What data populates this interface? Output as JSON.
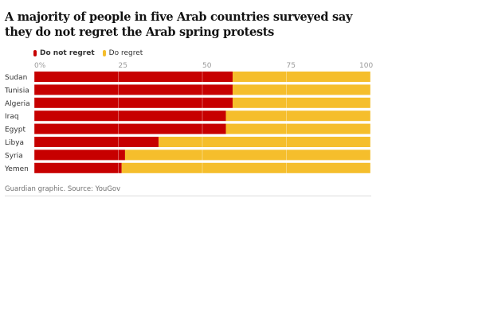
{
  "title": "A majority of people in five Arab countries surveyed say they do not regret the Arab spring protests",
  "source": "Guardian graphic. Source: YouGov",
  "chart_data": {
    "type": "bar",
    "stacked": true,
    "orientation": "horizontal",
    "categories": [
      "Sudan",
      "Tunisia",
      "Algeria",
      "Iraq",
      "Egypt",
      "Libya",
      "Syria",
      "Yemen"
    ],
    "series": [
      {
        "name": "Do not regret",
        "color": "#c70000",
        "values": [
          59,
          59,
          59,
          57,
          57,
          37,
          27,
          26
        ]
      },
      {
        "name": "Do regret",
        "color": "#f5be2c",
        "values": [
          41,
          41,
          41,
          43,
          43,
          63,
          73,
          74
        ]
      }
    ],
    "xlim": [
      0,
      100
    ],
    "xticks": [
      "0%",
      "25",
      "50",
      "75",
      "100"
    ],
    "legend": "top-left",
    "grid": true
  }
}
